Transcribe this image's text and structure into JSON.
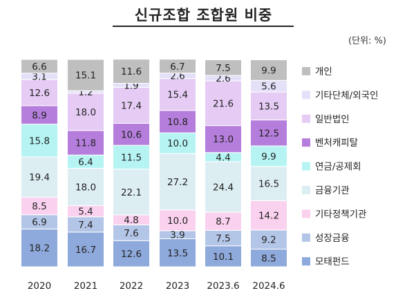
{
  "chart_data": {
    "type": "bar",
    "stacked": true,
    "percent": true,
    "title": "신규조합 조합원 비중",
    "unit_note": "(단위: %)",
    "categories": [
      "2020",
      "2021",
      "2022",
      "2023",
      "2023.6",
      "2024.6"
    ],
    "ylim": [
      0,
      100
    ],
    "grid": false,
    "legend_position": "right",
    "series": [
      {
        "name": "모태펀드",
        "color": "#8EA9DB",
        "values": [
          18.2,
          16.7,
          12.6,
          13.5,
          10.1,
          8.5
        ]
      },
      {
        "name": "성장금융",
        "color": "#B4C6E7",
        "values": [
          6.9,
          7.4,
          7.6,
          3.9,
          7.5,
          9.2
        ]
      },
      {
        "name": "기타정책기관",
        "color": "#FAD1EE",
        "values": [
          8.5,
          5.4,
          4.8,
          10.0,
          8.7,
          14.2
        ]
      },
      {
        "name": "금융기관",
        "color": "#DDEEF3",
        "values": [
          19.4,
          18.0,
          22.1,
          27.2,
          24.4,
          16.5
        ]
      },
      {
        "name": "연금/공제회",
        "color": "#B6F4F4",
        "values": [
          15.8,
          6.4,
          11.5,
          10.0,
          4.4,
          9.9
        ]
      },
      {
        "name": "벤처캐피탈",
        "color": "#B57EDC",
        "values": [
          8.9,
          11.8,
          10.6,
          10.8,
          13.0,
          12.5
        ]
      },
      {
        "name": "일반법인",
        "color": "#E6CCF5",
        "values": [
          12.6,
          18.0,
          17.4,
          15.4,
          21.6,
          13.5
        ]
      },
      {
        "name": "기타단체/외국인",
        "color": "#E4E0F8",
        "values": [
          3.1,
          1.2,
          1.9,
          2.6,
          2.6,
          5.6
        ]
      },
      {
        "name": "개인",
        "color": "#BFBFBF",
        "values": [
          6.6,
          15.1,
          11.6,
          6.7,
          7.5,
          9.9
        ]
      }
    ]
  }
}
